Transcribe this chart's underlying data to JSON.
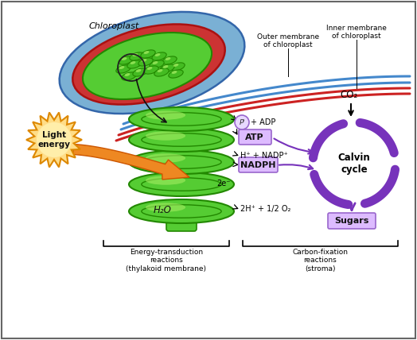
{
  "bg_color": "#ffffff",
  "border_color": "#888888",
  "chloroplast_label": "Chloroplast",
  "outer_membrane_label": "Outer membrane\nof chloroplast",
  "inner_membrane_label": "Inner membrane\nof chloroplast",
  "light_energy_label": "Light\nenergy",
  "calvin_cycle_label": "Calvin\ncycle",
  "co2_label": "CO₂",
  "sugars_label": "Sugars",
  "atp_label": "ATP",
  "nadph_label": "NADPH",
  "pi_label": "Pᴵ",
  "pi_adp_label": "+ ADP",
  "h_nadp_label": "H⁺ + NADP⁺",
  "h2o_label": "H₂O",
  "h_o2_label": "2H⁺ + 1/2 O₂",
  "e_label": "2e⁻",
  "energy_transduction_label": "Energy-transduction\nreactions\n(thylakoid membrane)",
  "carbon_fixation_label": "Carbon-fixation\nreactions\n(stroma)",
  "blue1": "#4488cc",
  "blue2": "#5599dd",
  "red1": "#cc2222",
  "green_dark": "#228800",
  "green_mid": "#44bb22",
  "green_light": "#88ee55",
  "green_hi": "#aaf066",
  "orange_color": "#ee8822",
  "orange_edge": "#cc5500",
  "orange_light": "#ffcc66",
  "purple_dark": "#440088",
  "purple_mid": "#7733bb",
  "purple_light": "#cc99ee",
  "box_fill": "#ddbbff",
  "box_border": "#9966cc",
  "sun_fill": "#ffdd88",
  "sun_edge": "#dd8800",
  "sun_inner": "#ffeeaa",
  "cp_blue": "#7ab0d4",
  "cp_blue_edge": "#3366aa",
  "cp_red": "#cc3333",
  "cp_red_edge": "#aa1111",
  "cp_green": "#55cc33"
}
